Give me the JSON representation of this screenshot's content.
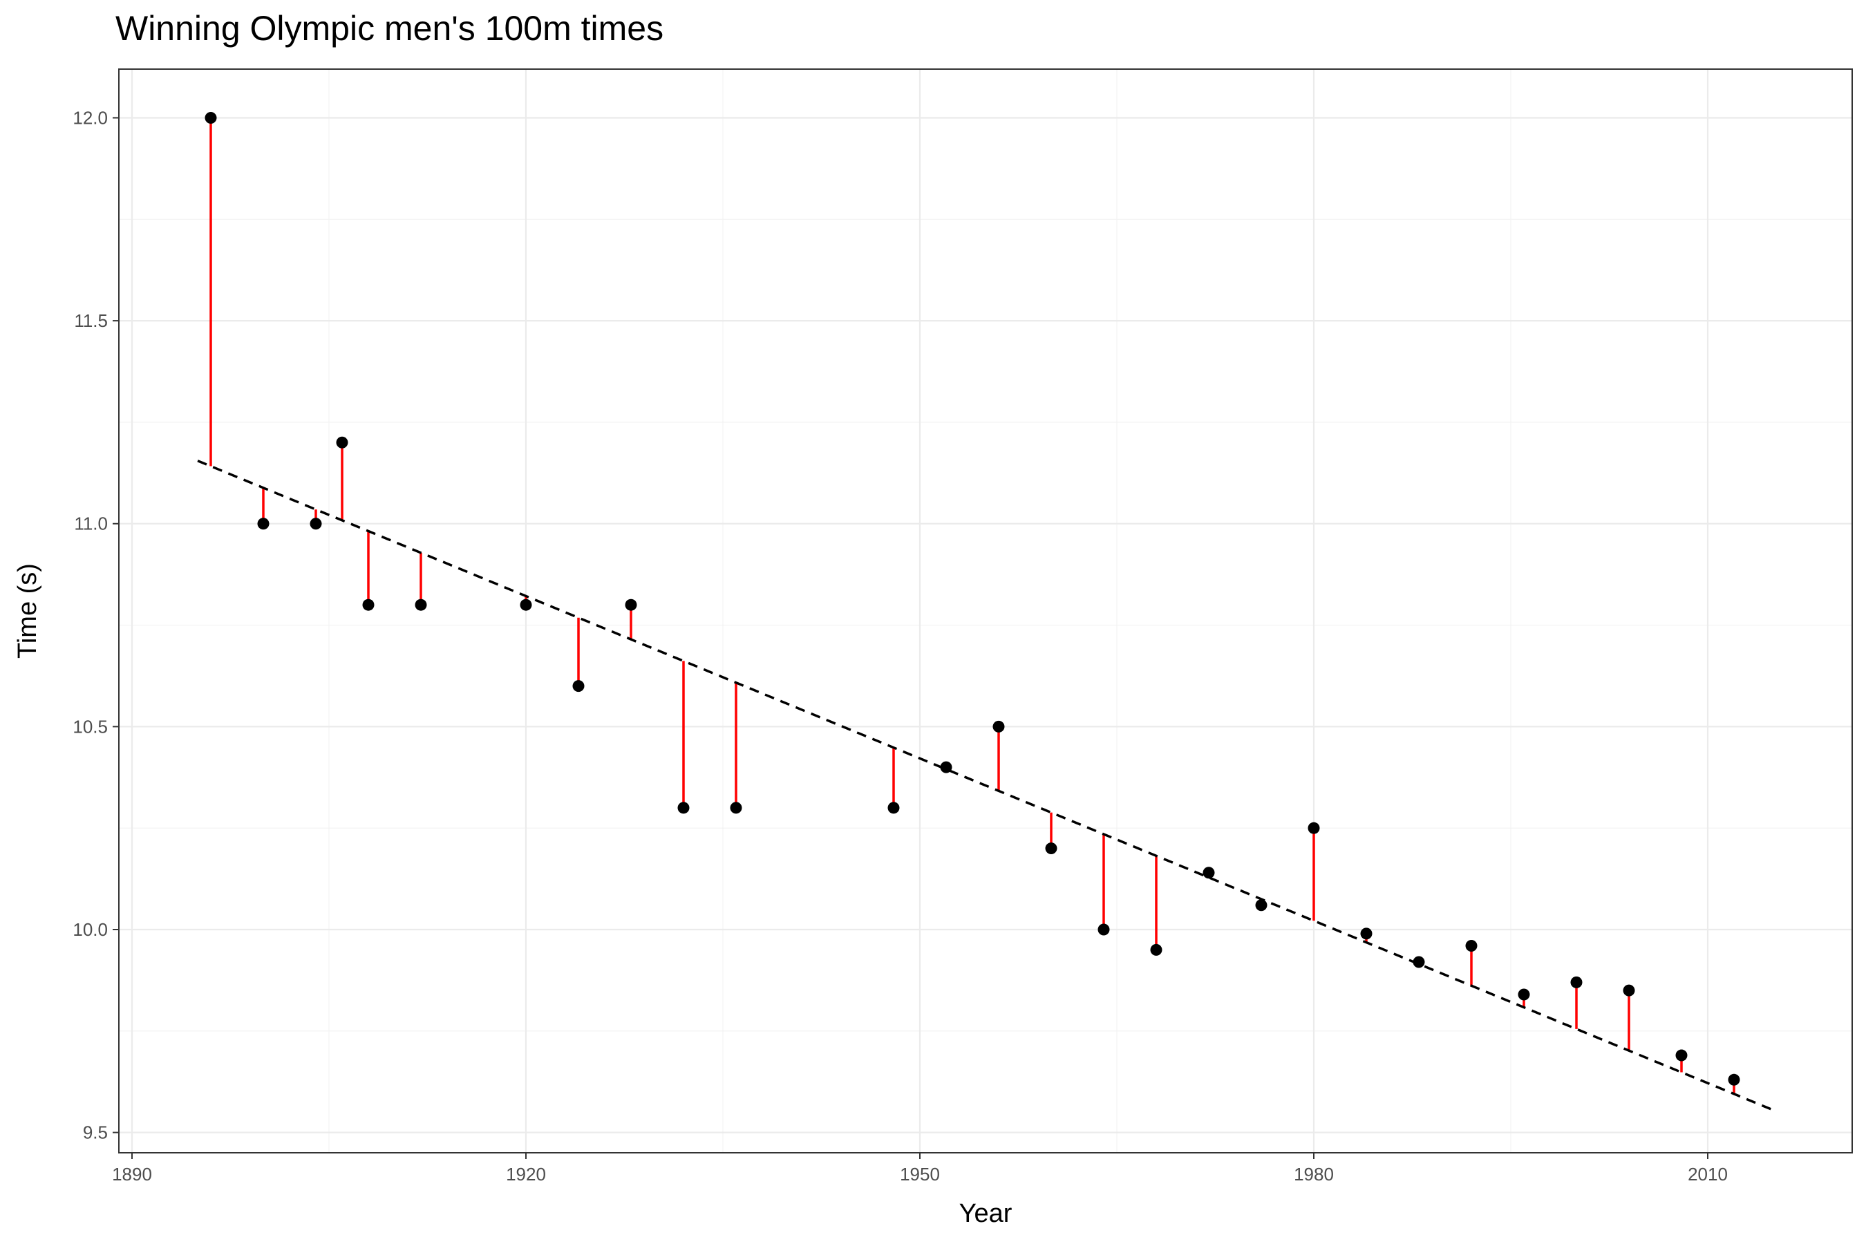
{
  "chart_data": {
    "type": "scatter",
    "title": "Winning Olympic men's 100m times",
    "xlabel": "Year",
    "ylabel": "Time (s)",
    "xlim": [
      1889,
      2021
    ],
    "ylim": [
      9.45,
      12.12
    ],
    "x_ticks": [
      1890,
      1920,
      1950,
      1980,
      2010
    ],
    "x_tick_labels": [
      "1890",
      "1920",
      "1950",
      "1980",
      "2010"
    ],
    "y_ticks": [
      9.5,
      10.0,
      10.5,
      11.0,
      11.5,
      12.0
    ],
    "y_tick_labels": [
      "9.5",
      "10.0",
      "10.5",
      "11.0",
      "11.5",
      "12.0"
    ],
    "grid": true,
    "legend": "none",
    "points": [
      {
        "year": 1896,
        "time": 12.0
      },
      {
        "year": 1900,
        "time": 11.0
      },
      {
        "year": 1904,
        "time": 11.0
      },
      {
        "year": 1906,
        "time": 11.2
      },
      {
        "year": 1908,
        "time": 10.8
      },
      {
        "year": 1912,
        "time": 10.8
      },
      {
        "year": 1920,
        "time": 10.8
      },
      {
        "year": 1924,
        "time": 10.6
      },
      {
        "year": 1928,
        "time": 10.8
      },
      {
        "year": 1932,
        "time": 10.3
      },
      {
        "year": 1936,
        "time": 10.3
      },
      {
        "year": 1948,
        "time": 10.3
      },
      {
        "year": 1952,
        "time": 10.4
      },
      {
        "year": 1956,
        "time": 10.5
      },
      {
        "year": 1960,
        "time": 10.2
      },
      {
        "year": 1964,
        "time": 10.0
      },
      {
        "year": 1968,
        "time": 9.95
      },
      {
        "year": 1972,
        "time": 10.14
      },
      {
        "year": 1976,
        "time": 10.06
      },
      {
        "year": 1980,
        "time": 10.25
      },
      {
        "year": 1984,
        "time": 9.99
      },
      {
        "year": 1988,
        "time": 9.92
      },
      {
        "year": 1992,
        "time": 9.96
      },
      {
        "year": 1996,
        "time": 9.84
      },
      {
        "year": 2000,
        "time": 9.87
      },
      {
        "year": 2004,
        "time": 9.85
      },
      {
        "year": 2008,
        "time": 9.69
      },
      {
        "year": 2012,
        "time": 9.63
      }
    ],
    "fit_line": {
      "x": [
        1895,
        2015
      ],
      "y": [
        11.155,
        9.555
      ]
    },
    "colors": {
      "points": "#000000",
      "residuals": "#ff0000",
      "fit_line": "#000000"
    }
  }
}
